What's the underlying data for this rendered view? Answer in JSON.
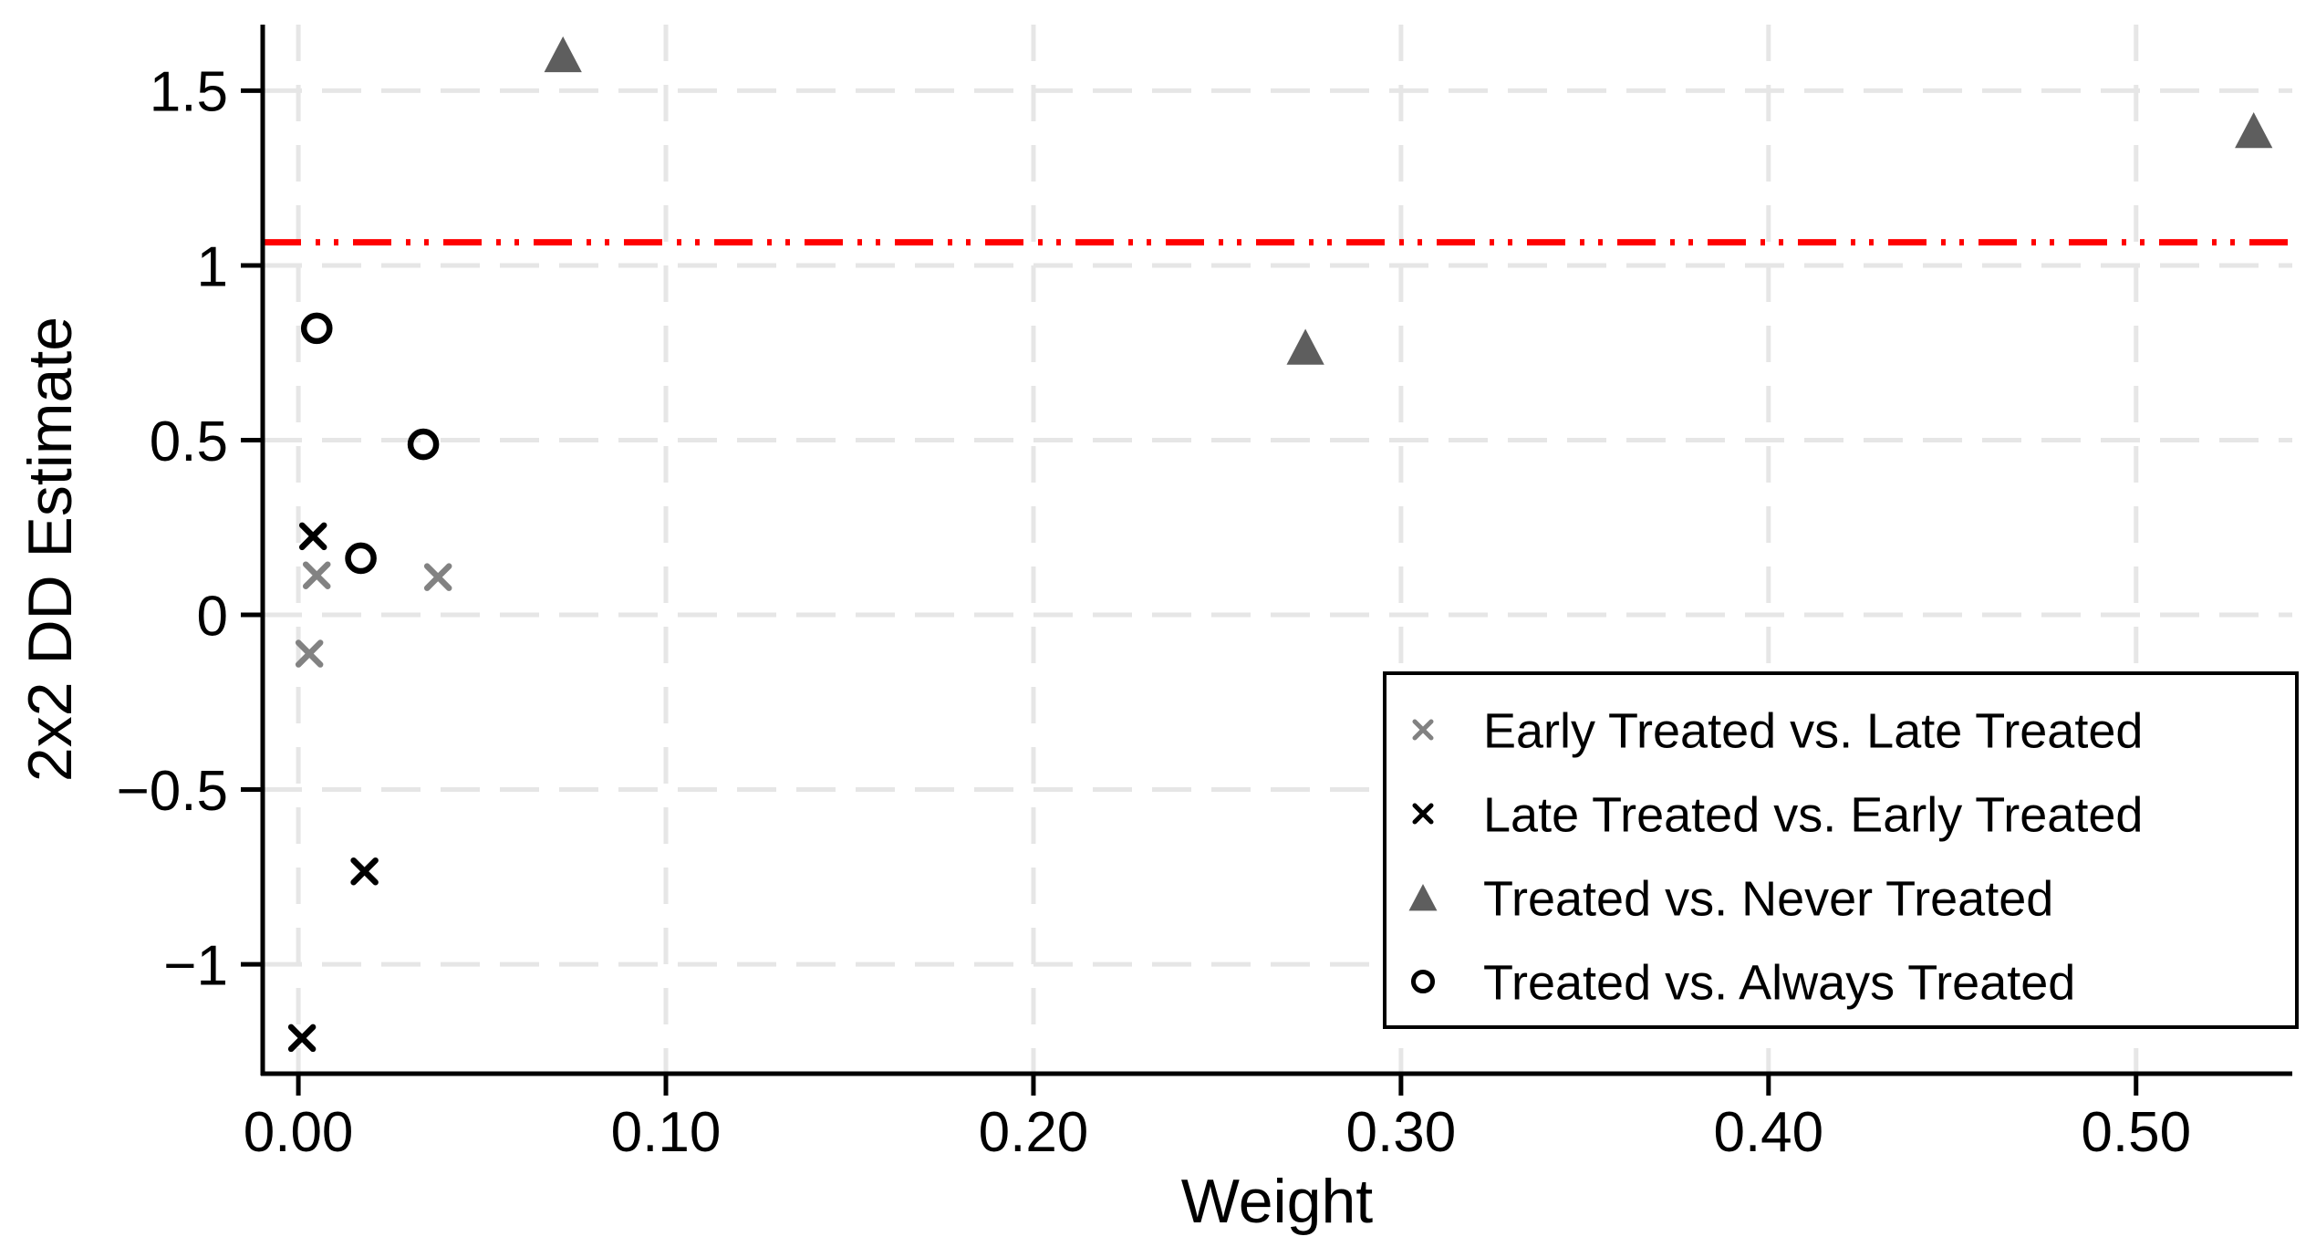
{
  "chart_data": {
    "type": "scatter",
    "title": "",
    "xlabel": "Weight",
    "ylabel": "2x2 DD Estimate",
    "xlim": [
      -0.0097,
      0.5425
    ],
    "ylim": [
      -1.313,
      1.689
    ],
    "grid": "dashed-light-gray",
    "legend_position": "bottom-right",
    "x_ticks": [
      {
        "value": 0.0,
        "label": "0.00"
      },
      {
        "value": 0.1,
        "label": "0.10"
      },
      {
        "value": 0.2,
        "label": "0.20"
      },
      {
        "value": 0.3,
        "label": "0.30"
      },
      {
        "value": 0.4,
        "label": "0.40"
      },
      {
        "value": 0.5,
        "label": "0.50"
      }
    ],
    "y_ticks": [
      {
        "value": -1.0,
        "label": "−1"
      },
      {
        "value": -0.5,
        "label": "−0.5"
      },
      {
        "value": 0.0,
        "label": "0"
      },
      {
        "value": 0.5,
        "label": "0.5"
      },
      {
        "value": 1.0,
        "label": "1"
      },
      {
        "value": 1.5,
        "label": "1.5"
      }
    ],
    "reference_line": {
      "orientation": "horizontal",
      "value": 1.066,
      "color": "#ff0000",
      "style": "dash-dot-dot"
    },
    "series": [
      {
        "name": "Early Treated vs. Late Treated",
        "marker": "x",
        "color": "#828282",
        "points": [
          [
            0.005,
            0.113
          ],
          [
            0.038,
            0.108
          ],
          [
            0.003,
            -0.111
          ]
        ]
      },
      {
        "name": "Late Treated vs. Early Treated",
        "marker": "x",
        "color": "#000000",
        "points": [
          [
            0.004,
            0.225
          ],
          [
            0.018,
            -0.734
          ],
          [
            0.001,
            -1.211
          ]
        ]
      },
      {
        "name": "Treated vs. Never Treated",
        "marker": "triangle",
        "color": "#5e5e5e",
        "points": [
          [
            0.072,
            1.603
          ],
          [
            0.274,
            0.766
          ],
          [
            0.532,
            1.386
          ]
        ]
      },
      {
        "name": "Treated vs. Always Treated",
        "marker": "circle",
        "color": "#000000",
        "points": [
          [
            0.005,
            0.82
          ],
          [
            0.034,
            0.488
          ],
          [
            0.017,
            0.162
          ]
        ]
      }
    ],
    "colors": {
      "axis": "#000000",
      "gridline": "#e6e6e6",
      "background": "#ffffff",
      "reference": "#ff0000"
    }
  }
}
